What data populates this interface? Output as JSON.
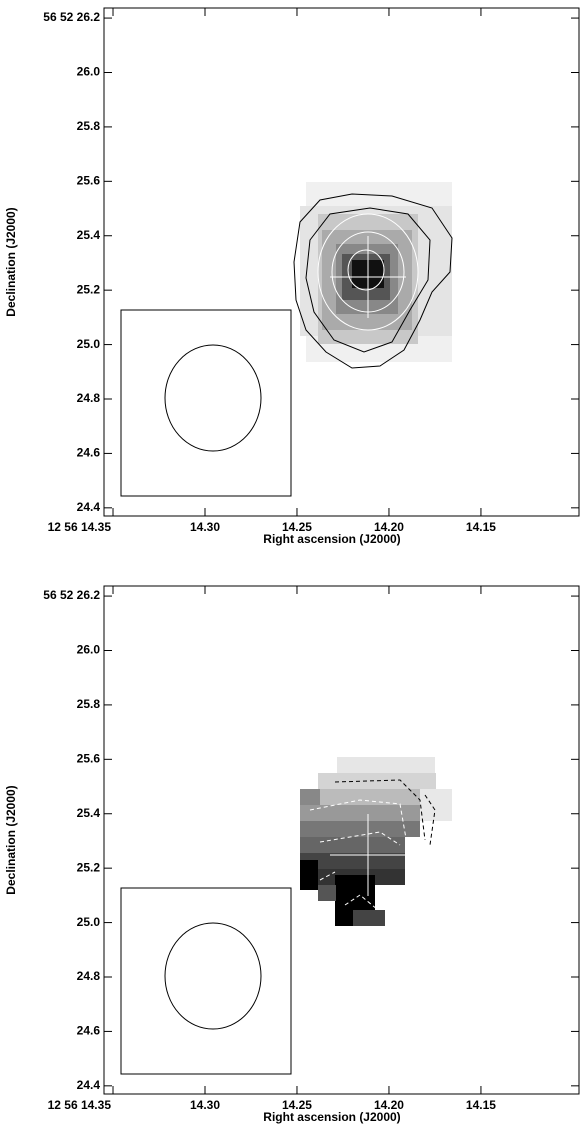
{
  "chart_data": [
    {
      "type": "image",
      "xlabel": "Right ascension (J2000)",
      "ylabel": "Declination (J2000)",
      "xlim": [
        14.3549,
        14.0967
      ],
      "ylim": [
        24.37,
        26.237
      ],
      "xticks": [
        {
          "value": 14.35,
          "label": "12 56 14.35"
        },
        {
          "value": 14.3,
          "label": "14.30"
        },
        14.25,
        {
          "value": 14.2,
          "label": "14.20"
        },
        14.15
      ],
      "yticks": [
        {
          "value": 26.2,
          "label": "56 52 26.2"
        },
        {
          "value": 26.0,
          "label": "26.0"
        },
        25.8,
        25.6,
        25.4,
        25.2,
        {
          "value": 25.0,
          "label": "25.0"
        },
        24.8,
        24.6,
        24.4
      ]
    },
    {
      "type": "image",
      "xlabel": "Right ascension (J2000)",
      "ylabel": "Declination (J2000)",
      "xlim": [
        14.3549,
        14.0967
      ],
      "ylim": [
        24.37,
        26.237
      ],
      "xticks": [
        {
          "value": 14.35,
          "label": "12 56 14.35"
        },
        {
          "value": 14.3,
          "label": "14.30"
        },
        14.25,
        {
          "value": 14.2,
          "label": "14.20"
        },
        14.15
      ],
      "yticks": [
        {
          "value": 26.2,
          "label": "56 52 26.2"
        },
        {
          "value": 26.0,
          "label": "26.0"
        },
        25.8,
        25.6,
        25.4,
        25.2,
        {
          "value": 25.0,
          "label": "25.0"
        },
        24.8,
        24.6,
        24.4
      ]
    }
  ]
}
